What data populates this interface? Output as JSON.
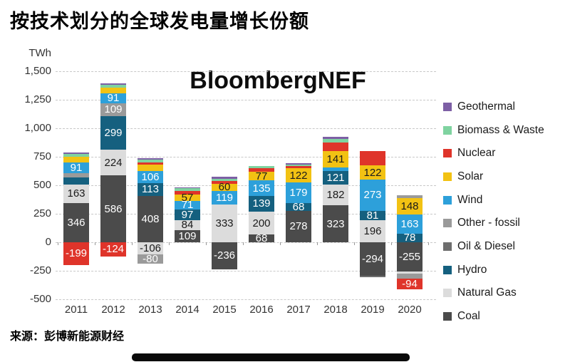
{
  "chart": {
    "title": "按技术划分的全球发电量增长份额",
    "watermark": "BloombergNEF",
    "unit": "TWh"
  },
  "footer": {
    "source": "来源：彭博新能源财经"
  },
  "chart_data": {
    "type": "bar",
    "subtype": "stacked-bar-with-negatives",
    "title": "按技术划分的全球发电量增长份额",
    "ylabel": "TWh",
    "ylim": [
      -500,
      1500
    ],
    "grid": "dashed-horizontal",
    "legend_position": "right",
    "yticks": [
      {
        "value": 1500,
        "label": "1,500"
      },
      {
        "value": 1250,
        "label": "1,250"
      },
      {
        "value": 1000,
        "label": "1,000"
      },
      {
        "value": 750,
        "label": "750"
      },
      {
        "value": 500,
        "label": "500"
      },
      {
        "value": 250,
        "label": "250"
      },
      {
        "value": 0,
        "label": "0"
      },
      {
        "value": -250,
        "label": "-250"
      },
      {
        "value": -500,
        "label": "-500"
      }
    ],
    "categories": [
      "2011",
      "2012",
      "2013",
      "2014",
      "2015",
      "2016",
      "2017",
      "2018",
      "2019",
      "2020"
    ],
    "technologies": [
      {
        "name": "Geothermal",
        "color": "#7d5fa5",
        "label_color": "#ffffff"
      },
      {
        "name": "Biomass & Waste",
        "color": "#7fd3a0",
        "label_color": "#1a1a1a"
      },
      {
        "name": "Nuclear",
        "color": "#df342a",
        "label_color": "#ffffff"
      },
      {
        "name": "Solar",
        "color": "#f2c213",
        "label_color": "#1a1a1a"
      },
      {
        "name": "Wind",
        "color": "#2da0da",
        "label_color": "#ffffff"
      },
      {
        "name": "Other - fossil",
        "color": "#9a9a9a",
        "label_color": "#ffffff"
      },
      {
        "name": "Oil & Diesel",
        "color": "#6e6e6e",
        "label_color": "#ffffff"
      },
      {
        "name": "Hydro",
        "color": "#15607f",
        "label_color": "#ffffff"
      },
      {
        "name": "Natural Gas",
        "color": "#dcdcdc",
        "label_color": "#1a1a1a"
      },
      {
        "name": "Coal",
        "color": "#4b4b4b",
        "label_color": "#ffffff"
      }
    ],
    "bars": [
      {
        "year": "2011",
        "positive": [
          {
            "tech": "Coal",
            "value": 346,
            "label": "346"
          },
          {
            "tech": "Natural Gas",
            "value": 163,
            "label": "163"
          },
          {
            "tech": "Hydro",
            "value": 60,
            "label": null
          },
          {
            "tech": "Other - fossil",
            "value": 40,
            "label": null
          },
          {
            "tech": "Wind",
            "value": 91,
            "label": "91"
          },
          {
            "tech": "Solar",
            "value": 50,
            "label": null
          },
          {
            "tech": "Biomass & Waste",
            "value": 28,
            "label": null
          },
          {
            "tech": "Geothermal",
            "value": 12,
            "label": null
          }
        ],
        "negative": [
          {
            "tech": "Nuclear",
            "value": -199,
            "label": "-199"
          }
        ]
      },
      {
        "year": "2012",
        "positive": [
          {
            "tech": "Coal",
            "value": 586,
            "label": "586"
          },
          {
            "tech": "Natural Gas",
            "value": 224,
            "label": "224"
          },
          {
            "tech": "Hydro",
            "value": 299,
            "label": "299"
          },
          {
            "tech": "Other - fossil",
            "value": 109,
            "label": "109"
          },
          {
            "tech": "Wind",
            "value": 91,
            "label": "91"
          },
          {
            "tech": "Solar",
            "value": 45,
            "label": null
          },
          {
            "tech": "Biomass & Waste",
            "value": 28,
            "label": null
          },
          {
            "tech": "Geothermal",
            "value": 12,
            "label": null
          }
        ],
        "negative": [
          {
            "tech": "Nuclear",
            "value": -124,
            "label": "-124"
          }
        ]
      },
      {
        "year": "2013",
        "positive": [
          {
            "tech": "Coal",
            "value": 408,
            "label": "408"
          },
          {
            "tech": "Hydro",
            "value": 113,
            "label": "113"
          },
          {
            "tech": "Wind",
            "value": 106,
            "label": "106"
          },
          {
            "tech": "Solar",
            "value": 55,
            "label": null
          },
          {
            "tech": "Nuclear",
            "value": 15,
            "label": null
          },
          {
            "tech": "Biomass & Waste",
            "value": 30,
            "label": null
          },
          {
            "tech": "Geothermal",
            "value": 10,
            "label": null
          }
        ],
        "negative": [
          {
            "tech": "Natural Gas",
            "value": -106,
            "label": "-106"
          },
          {
            "tech": "Other - fossil",
            "value": -80,
            "label": "-80"
          }
        ]
      },
      {
        "year": "2014",
        "positive": [
          {
            "tech": "Coal",
            "value": 109,
            "label": "109"
          },
          {
            "tech": "Natural Gas",
            "value": 84,
            "label": "84"
          },
          {
            "tech": "Hydro",
            "value": 97,
            "label": "97"
          },
          {
            "tech": "Wind",
            "value": 71,
            "label": "71"
          },
          {
            "tech": "Solar",
            "value": 57,
            "label": "57"
          },
          {
            "tech": "Nuclear",
            "value": 30,
            "label": null
          },
          {
            "tech": "Biomass & Waste",
            "value": 25,
            "label": null
          },
          {
            "tech": "Geothermal",
            "value": 8,
            "label": null
          }
        ],
        "negative": []
      },
      {
        "year": "2015",
        "positive": [
          {
            "tech": "Natural Gas",
            "value": 333,
            "label": "333"
          },
          {
            "tech": "Wind",
            "value": 119,
            "label": "119"
          },
          {
            "tech": "Solar",
            "value": 60,
            "label": "60"
          },
          {
            "tech": "Nuclear",
            "value": 25,
            "label": null
          },
          {
            "tech": "Biomass & Waste",
            "value": 20,
            "label": null
          },
          {
            "tech": "Geothermal",
            "value": 18,
            "label": null
          }
        ],
        "negative": [
          {
            "tech": "Coal",
            "value": -236,
            "label": "-236"
          }
        ]
      },
      {
        "year": "2016",
        "positive": [
          {
            "tech": "Coal",
            "value": 68,
            "label": "68"
          },
          {
            "tech": "Natural Gas",
            "value": 200,
            "label": "200"
          },
          {
            "tech": "Hydro",
            "value": 139,
            "label": "139"
          },
          {
            "tech": "Wind",
            "value": 135,
            "label": "135"
          },
          {
            "tech": "Solar",
            "value": 77,
            "label": "77"
          },
          {
            "tech": "Nuclear",
            "value": 30,
            "label": null
          },
          {
            "tech": "Biomass & Waste",
            "value": 20,
            "label": null
          }
        ],
        "negative": []
      },
      {
        "year": "2017",
        "positive": [
          {
            "tech": "Coal",
            "value": 278,
            "label": "278"
          },
          {
            "tech": "Hydro",
            "value": 68,
            "label": "68"
          },
          {
            "tech": "Wind",
            "value": 179,
            "label": "179"
          },
          {
            "tech": "Solar",
            "value": 122,
            "label": "122"
          },
          {
            "tech": "Nuclear",
            "value": 20,
            "label": null
          },
          {
            "tech": "Biomass & Waste",
            "value": 15,
            "label": null
          },
          {
            "tech": "Geothermal",
            "value": 12,
            "label": null
          }
        ],
        "negative": []
      },
      {
        "year": "2018",
        "positive": [
          {
            "tech": "Coal",
            "value": 323,
            "label": "323"
          },
          {
            "tech": "Natural Gas",
            "value": 182,
            "label": "182"
          },
          {
            "tech": "Hydro",
            "value": 121,
            "label": "121"
          },
          {
            "tech": "Wind",
            "value": 30,
            "label": null
          },
          {
            "tech": "Solar",
            "value": 141,
            "label": "141"
          },
          {
            "tech": "Nuclear",
            "value": 80,
            "label": null
          },
          {
            "tech": "Biomass & Waste",
            "value": 30,
            "label": null
          },
          {
            "tech": "Geothermal",
            "value": 15,
            "label": null
          }
        ],
        "negative": []
      },
      {
        "year": "2019",
        "positive": [
          {
            "tech": "Natural Gas",
            "value": 196,
            "label": "196"
          },
          {
            "tech": "Hydro",
            "value": 81,
            "label": "81"
          },
          {
            "tech": "Wind",
            "value": 273,
            "label": "273"
          },
          {
            "tech": "Solar",
            "value": 122,
            "label": "122"
          },
          {
            "tech": "Nuclear",
            "value": 125,
            "label": null
          }
        ],
        "negative": [
          {
            "tech": "Coal",
            "value": -294,
            "label": "-294"
          },
          {
            "tech": "Oil & Diesel",
            "value": -15,
            "label": null
          }
        ]
      },
      {
        "year": "2020",
        "positive": [
          {
            "tech": "Hydro",
            "value": 78,
            "label": "78"
          },
          {
            "tech": "Wind",
            "value": 163,
            "label": "163"
          },
          {
            "tech": "Solar",
            "value": 148,
            "label": "148"
          },
          {
            "tech": "Other - fossil",
            "value": 25,
            "label": null
          }
        ],
        "negative": [
          {
            "tech": "Coal",
            "value": -255,
            "label": "-255"
          },
          {
            "tech": "Natural Gas",
            "value": -20,
            "label": null
          },
          {
            "tech": "Other - fossil",
            "value": -45,
            "label": null
          },
          {
            "tech": "Nuclear",
            "value": -94,
            "label": "-94"
          }
        ]
      }
    ]
  }
}
